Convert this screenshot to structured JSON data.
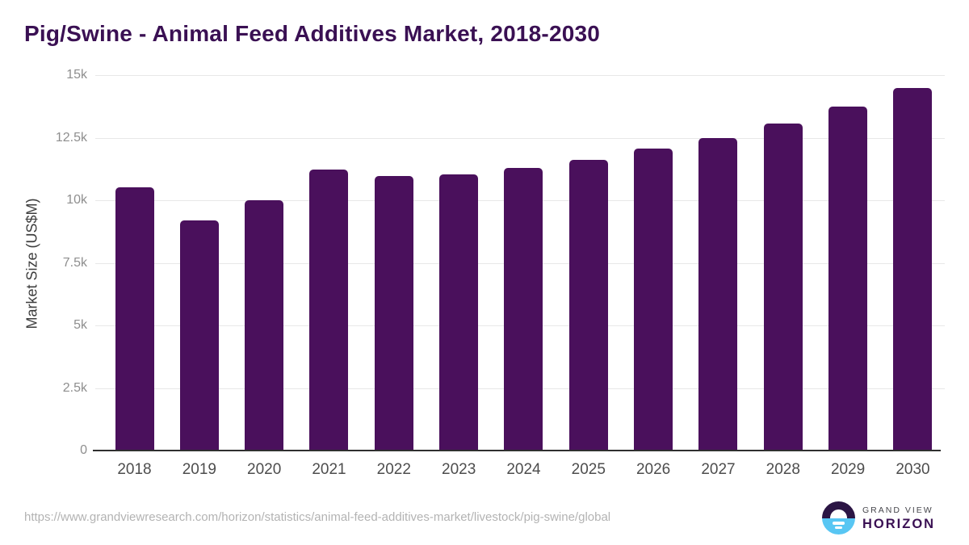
{
  "chart_data": {
    "type": "bar",
    "title": "Pig/Swine - Animal Feed Additives Market, 2018-2030",
    "xlabel": "",
    "ylabel": "Market Size (US$M)",
    "categories": [
      "2018",
      "2019",
      "2020",
      "2021",
      "2022",
      "2023",
      "2024",
      "2025",
      "2026",
      "2027",
      "2028",
      "2029",
      "2030"
    ],
    "values": [
      10520,
      9180,
      10010,
      11240,
      10980,
      11030,
      11300,
      11620,
      12060,
      12490,
      13060,
      13740,
      14470
    ],
    "ylim": [
      0,
      15000
    ],
    "yticks": [
      {
        "value": 0,
        "label": "0"
      },
      {
        "value": 2500,
        "label": "2.5k"
      },
      {
        "value": 5000,
        "label": "5k"
      },
      {
        "value": 7500,
        "label": "7.5k"
      },
      {
        "value": 10000,
        "label": "10k"
      },
      {
        "value": 12500,
        "label": "12.5k"
      },
      {
        "value": 15000,
        "label": "15k"
      }
    ],
    "grid": "horizontal",
    "legend": "none",
    "bar_color": "#4a105c"
  },
  "footer": {
    "url": "https://www.grandviewresearch.com/horizon/statistics/animal-feed-additives-market/livestock/pig-swine/global",
    "logo": {
      "line1": "GRAND VIEW",
      "line2": "HORIZON"
    }
  },
  "colors": {
    "bar": "#4a105c",
    "title": "#3a1053",
    "gridline": "#e8e8e8",
    "axis_line": "#303030",
    "y_tick_text": "#8e8e8e",
    "x_tick_text": "#4d4d4d",
    "url_text": "#b3b3b3",
    "logo_dark": "#2b1544",
    "logo_blue": "#58c6f3"
  }
}
